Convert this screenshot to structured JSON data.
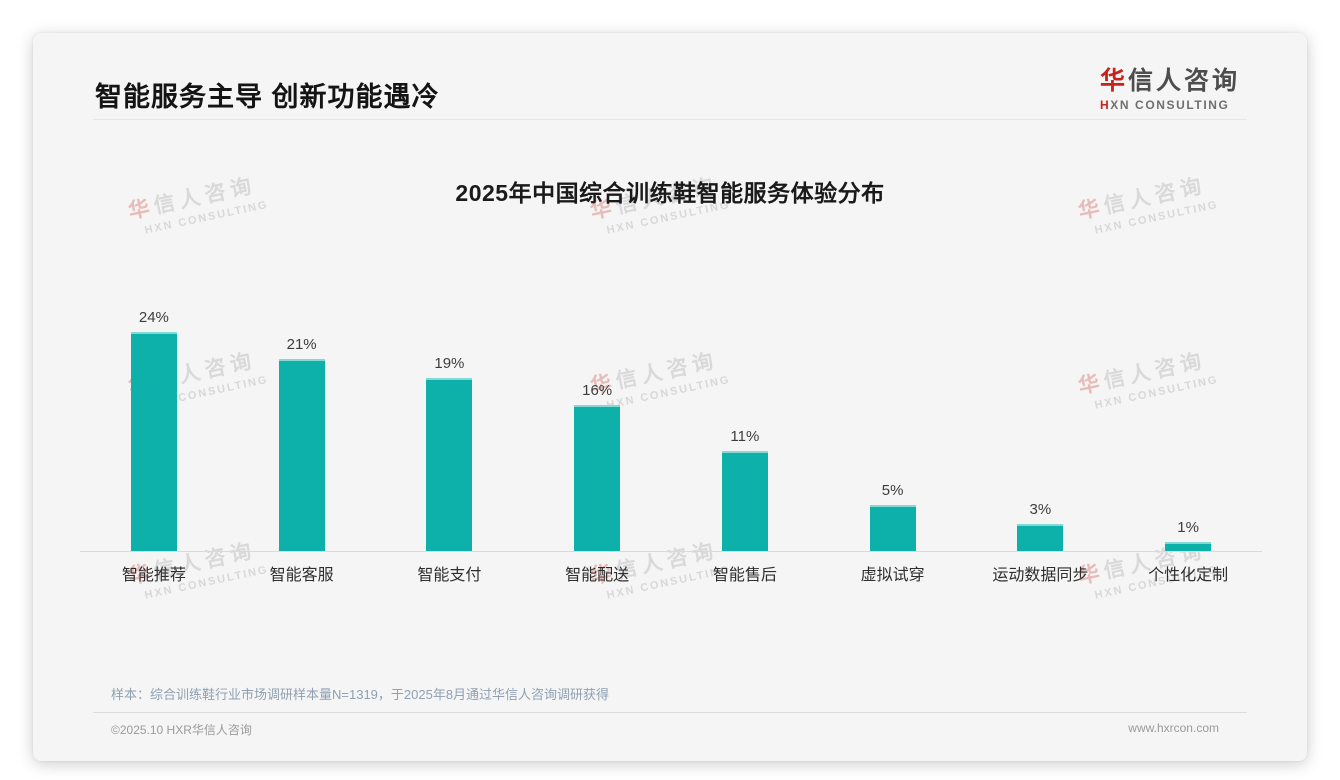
{
  "page": {
    "title": "智能服务主导 创新功能遇冷",
    "sample_note": "样本：综合训练鞋行业市场调研样本量N=1319，于2025年8月通过华信人咨询调研获得",
    "footer_left": "©2025.10 HXR华信人咨询",
    "footer_right": "www.hxrcon.com"
  },
  "logo": {
    "cn_first": "华",
    "cn_rest": "信人咨询",
    "en_first": "H",
    "en_rest": "XN CONSULTING"
  },
  "watermark": {
    "cn_first": "华",
    "cn_rest": "信人咨询",
    "en": "HXN CONSULTING"
  },
  "chart_data": {
    "type": "bar",
    "title": "2025年中国综合训练鞋智能服务体验分布",
    "categories": [
      "智能推荐",
      "智能客服",
      "智能支付",
      "智能配送",
      "智能售后",
      "虚拟试穿",
      "运动数据同步",
      "个性化定制"
    ],
    "values": [
      24,
      21,
      19,
      16,
      11,
      5,
      3,
      1
    ],
    "unit": "%",
    "value_labels": true,
    "xlabel": "",
    "ylabel": "",
    "ylim": [
      0,
      26
    ],
    "grid": false,
    "legend": false,
    "bar_color": "#0db1a9",
    "axis_color": "#d9d9d9"
  }
}
